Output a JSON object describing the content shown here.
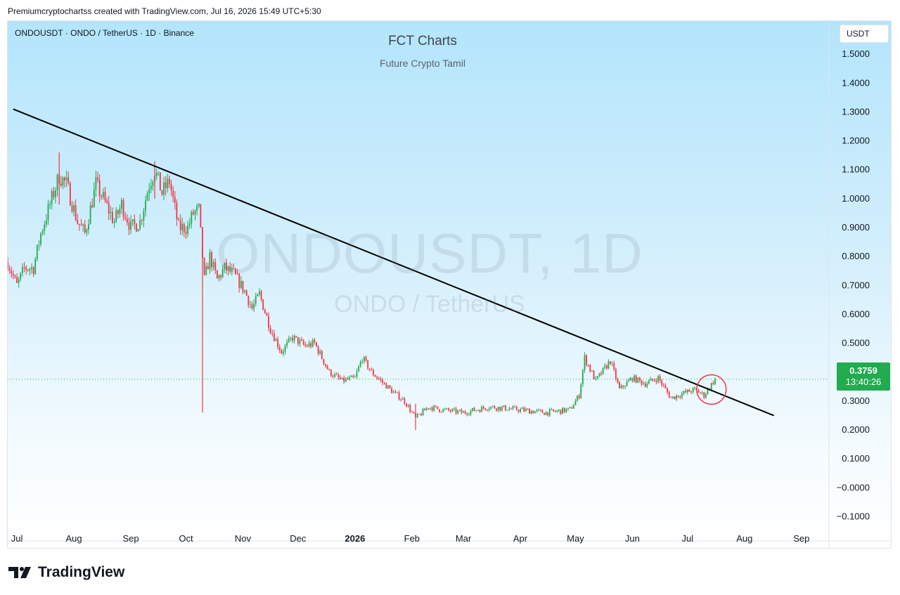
{
  "caption": "Premiumcryptochartss created with TradingView.com, Jul 16, 2026 15:49 UTC+5:30",
  "symbol_line": "ONDOUSDT · ONDO / TetherUS · 1D · Binance",
  "currency_button": "USDT",
  "watermark": {
    "main": "ONDOUSDT, 1D",
    "sub": "ONDO / TetherUS"
  },
  "brand": {
    "name": "TradingView"
  },
  "last_price": {
    "value": "0.3759",
    "countdown": "13:40:26",
    "color": "#22ab4f"
  },
  "colors": {
    "up": "#22ab4f",
    "down": "#f23645",
    "trendline": "#000000",
    "marker": "#f23645"
  },
  "chart_data": {
    "type": "candlestick",
    "title": "FCT Charts",
    "subtitle": "Future Crypto Tamil",
    "interval": "1D",
    "y_axis": {
      "ticks": [
        "1.5000",
        "1.4000",
        "1.3000",
        "1.2000",
        "1.1000",
        "1.0000",
        "0.9000",
        "0.8000",
        "0.7000",
        "0.6000",
        "0.5000",
        "0.4000",
        "0.3000",
        "0.2000",
        "0.1000",
        "−0.0000",
        "−0.1000"
      ],
      "tick_values": [
        1.5,
        1.4,
        1.3,
        1.2,
        1.1,
        1.0,
        0.9,
        0.8,
        0.7,
        0.6,
        0.5,
        0.4,
        0.3,
        0.2,
        0.1,
        0.0,
        -0.1
      ],
      "ylim": [
        -0.14,
        1.6
      ]
    },
    "x_axis": {
      "ticks": [
        "Jul",
        "Aug",
        "Sep",
        "Oct",
        "Nov",
        "Dec",
        "2026",
        "Feb",
        "Mar",
        "Apr",
        "May",
        "Jun",
        "Jul",
        "Aug",
        "Sep"
      ],
      "tick_dates": [
        "2025-07-01",
        "2025-08-01",
        "2025-09-01",
        "2025-10-01",
        "2025-11-01",
        "2025-12-01",
        "2026-01-01",
        "2026-02-01",
        "2026-03-01",
        "2026-04-01",
        "2026-05-01",
        "2026-06-01",
        "2026-07-01",
        "2026-08-01",
        "2026-09-01"
      ],
      "bold_ticks": [
        "2026"
      ],
      "xlim": [
        "2025-06-26",
        "2026-09-16"
      ]
    },
    "approx_close_path": [
      {
        "date": "2025-06-26",
        "close": 0.78
      },
      {
        "date": "2025-07-01",
        "close": 0.7
      },
      {
        "date": "2025-07-05",
        "close": 0.76
      },
      {
        "date": "2025-07-10",
        "close": 0.76
      },
      {
        "date": "2025-07-14",
        "close": 0.88
      },
      {
        "date": "2025-07-20",
        "close": 1.0
      },
      {
        "date": "2025-07-24",
        "close": 1.08
      },
      {
        "date": "2025-07-28",
        "close": 1.05
      },
      {
        "date": "2025-08-03",
        "close": 0.92
      },
      {
        "date": "2025-08-07",
        "close": 0.88
      },
      {
        "date": "2025-08-13",
        "close": 1.05
      },
      {
        "date": "2025-08-17",
        "close": 1.0
      },
      {
        "date": "2025-08-23",
        "close": 0.92
      },
      {
        "date": "2025-08-27",
        "close": 0.98
      },
      {
        "date": "2025-09-01",
        "close": 0.9
      },
      {
        "date": "2025-09-06",
        "close": 0.92
      },
      {
        "date": "2025-09-11",
        "close": 1.05
      },
      {
        "date": "2025-09-14",
        "close": 1.1
      },
      {
        "date": "2025-09-18",
        "close": 1.02
      },
      {
        "date": "2025-09-22",
        "close": 1.06
      },
      {
        "date": "2025-09-27",
        "close": 0.9
      },
      {
        "date": "2025-10-02",
        "close": 0.9
      },
      {
        "date": "2025-10-05",
        "close": 0.95
      },
      {
        "date": "2025-10-08",
        "close": 0.96
      },
      {
        "date": "2025-10-11",
        "close": 0.72
      },
      {
        "date": "2025-10-14",
        "close": 0.8
      },
      {
        "date": "2025-10-18",
        "close": 0.72
      },
      {
        "date": "2025-10-22",
        "close": 0.76
      },
      {
        "date": "2025-10-27",
        "close": 0.74
      },
      {
        "date": "2025-11-02",
        "close": 0.68
      },
      {
        "date": "2025-11-06",
        "close": 0.62
      },
      {
        "date": "2025-11-10",
        "close": 0.67
      },
      {
        "date": "2025-11-16",
        "close": 0.55
      },
      {
        "date": "2025-11-22",
        "close": 0.47
      },
      {
        "date": "2025-11-28",
        "close": 0.52
      },
      {
        "date": "2025-12-05",
        "close": 0.49
      },
      {
        "date": "2025-12-10",
        "close": 0.5
      },
      {
        "date": "2025-12-18",
        "close": 0.4
      },
      {
        "date": "2025-12-25",
        "close": 0.37
      },
      {
        "date": "2026-01-01",
        "close": 0.38
      },
      {
        "date": "2026-01-05",
        "close": 0.45
      },
      {
        "date": "2026-01-10",
        "close": 0.4
      },
      {
        "date": "2026-01-15",
        "close": 0.37
      },
      {
        "date": "2026-01-22",
        "close": 0.33
      },
      {
        "date": "2026-01-28",
        "close": 0.3
      },
      {
        "date": "2026-02-03",
        "close": 0.24
      },
      {
        "date": "2026-02-10",
        "close": 0.28
      },
      {
        "date": "2026-02-17",
        "close": 0.27
      },
      {
        "date": "2026-03-01",
        "close": 0.26
      },
      {
        "date": "2026-03-15",
        "close": 0.28
      },
      {
        "date": "2026-04-01",
        "close": 0.27
      },
      {
        "date": "2026-04-15",
        "close": 0.26
      },
      {
        "date": "2026-04-28",
        "close": 0.27
      },
      {
        "date": "2026-05-03",
        "close": 0.32
      },
      {
        "date": "2026-05-06",
        "close": 0.45
      },
      {
        "date": "2026-05-12",
        "close": 0.37
      },
      {
        "date": "2026-05-20",
        "close": 0.44
      },
      {
        "date": "2026-05-25",
        "close": 0.34
      },
      {
        "date": "2026-06-01",
        "close": 0.38
      },
      {
        "date": "2026-06-08",
        "close": 0.36
      },
      {
        "date": "2026-06-15",
        "close": 0.38
      },
      {
        "date": "2026-06-22",
        "close": 0.31
      },
      {
        "date": "2026-06-30",
        "close": 0.33
      },
      {
        "date": "2026-07-05",
        "close": 0.34
      },
      {
        "date": "2026-07-10",
        "close": 0.32
      },
      {
        "date": "2026-07-16",
        "close": 0.3759
      }
    ],
    "wicks": [
      {
        "date": "2025-10-10",
        "low": 0.26,
        "high": 0.82
      },
      {
        "date": "2025-07-24",
        "low": 0.98,
        "high": 1.16
      },
      {
        "date": "2025-09-14",
        "low": 1.0,
        "high": 1.13
      },
      {
        "date": "2026-02-03",
        "low": 0.2,
        "high": 0.29
      }
    ],
    "trendline": {
      "start": {
        "date": "2025-06-29",
        "price": 1.31
      },
      "end": {
        "date": "2026-08-17",
        "price": 0.25
      }
    },
    "highlight_circle": {
      "date": "2026-07-14",
      "price": 0.34
    },
    "last_price_line": 0.3759,
    "grid": false
  }
}
